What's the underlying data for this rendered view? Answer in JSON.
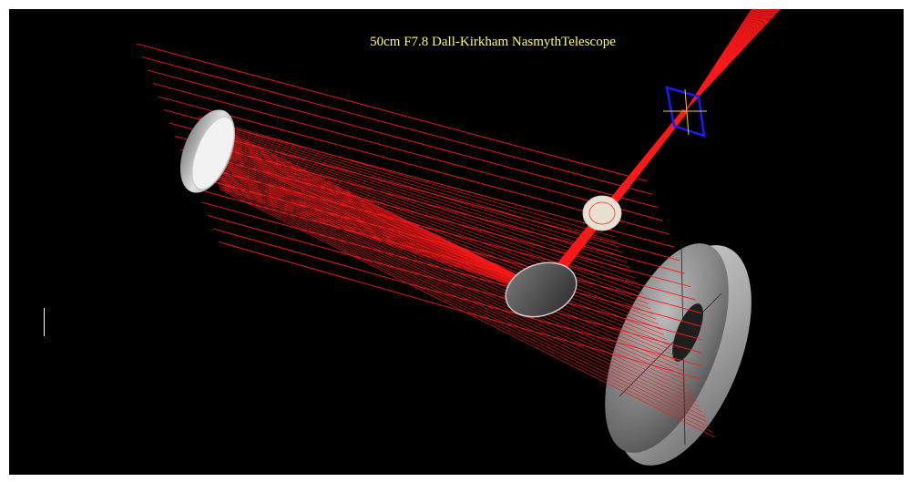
{
  "title": "50cm F7.8 Dall-Kirkham NasmythTelescope",
  "colors": {
    "background": "#000000",
    "rays": "#ff1a1a",
    "title": "#ffff55",
    "detector_frame": "#1a1aff",
    "detector_cross": "#ffcc00",
    "mirror_gray": "#9a9a9a"
  },
  "components": [
    {
      "name": "secondary-mirror",
      "icon": "elliptical-mirror"
    },
    {
      "name": "primary-mirror",
      "icon": "annular-mirror"
    },
    {
      "name": "tertiary-fold-mirror",
      "icon": "flat-mirror"
    },
    {
      "name": "corrector-lens",
      "icon": "lens"
    },
    {
      "name": "focal-plane-detector",
      "icon": "detector-square"
    }
  ]
}
